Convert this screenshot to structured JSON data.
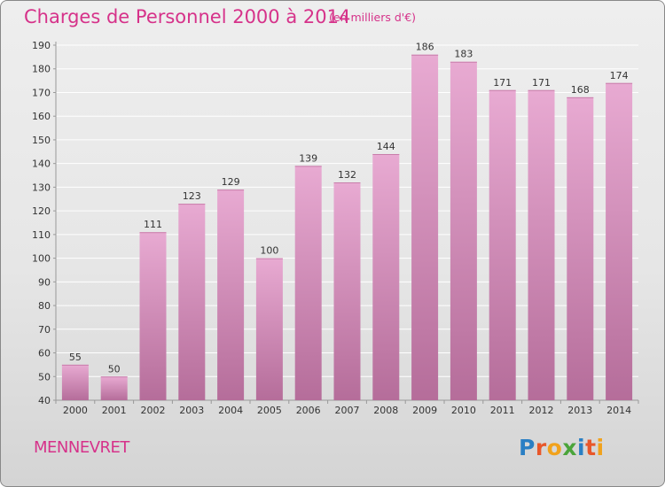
{
  "header": {
    "title": "Charges de Personnel 2000 à 2014",
    "subtitle": "(en milliers d'€)"
  },
  "footer": {
    "commune": "MENNEVRET",
    "brand": "Proxiti",
    "brand_letters": [
      "P",
      "r",
      "o",
      "x",
      "i",
      "t",
      "i"
    ],
    "brand_colors": [
      "#2a7fc4",
      "#e8572a",
      "#f1a21c",
      "#4aa43a",
      "#2a7fc4",
      "#e8572a",
      "#f1a21c"
    ]
  },
  "colors": {
    "bar_top": "#e8aad2",
    "bar_bottom": "#b56d9a",
    "accent": "#d6328a",
    "grid": "#ffffff"
  },
  "chart_data": {
    "type": "bar",
    "title": "Charges de Personnel 2000 à 2014",
    "subtitle": "(en milliers d'€)",
    "categories": [
      "2000",
      "2001",
      "2002",
      "2003",
      "2004",
      "2005",
      "2006",
      "2007",
      "2008",
      "2009",
      "2010",
      "2011",
      "2012",
      "2013",
      "2014"
    ],
    "values": [
      55,
      50,
      111,
      123,
      129,
      100,
      139,
      132,
      144,
      186,
      183,
      171,
      171,
      168,
      174
    ],
    "ylim": [
      40,
      190
    ],
    "yticks": [
      40,
      50,
      60,
      70,
      80,
      90,
      100,
      110,
      120,
      130,
      140,
      150,
      160,
      170,
      180,
      190
    ],
    "grid": true,
    "data_labels": true
  }
}
